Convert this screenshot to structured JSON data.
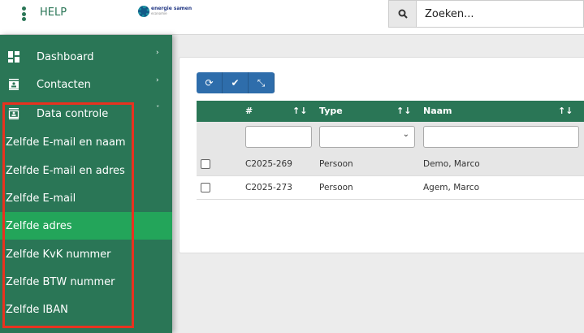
{
  "header": {
    "help_label": "HELP",
    "logo_text": "energie samen",
    "logo_subtext": "economie",
    "search_placeholder": "Zoeken..."
  },
  "sidebar": {
    "items": [
      {
        "label": "Dashboard",
        "icon": "dashboard-icon"
      },
      {
        "label": "Contacten",
        "icon": "contact-card-icon"
      },
      {
        "label": "Data controle",
        "icon": "data-check-icon"
      }
    ],
    "subitems": [
      "Zelfde E-mail en naam",
      "Zelfde E-mail en adres",
      "Zelfde E-mail",
      "Zelfde adres",
      "Zelfde KvK nummer",
      "Zelfde BTW nummer",
      "Zelfde IBAN"
    ],
    "active_subitem": "Zelfde adres"
  },
  "toolbar": {
    "buttons": [
      "refresh-icon",
      "check-icon",
      "compress-icon"
    ]
  },
  "table": {
    "columns": [
      "#",
      "Type",
      "Naam"
    ],
    "sort_icon": "↑↓",
    "rows": [
      {
        "id": "C2025-269",
        "type": "Persoon",
        "naam": "Demo, Marco"
      },
      {
        "id": "C2025-273",
        "type": "Persoon",
        "naam": "Agem, Marco"
      }
    ]
  },
  "colors": {
    "sidebar": "#2a7656",
    "active": "#23a55a",
    "button": "#2e6dab",
    "highlight": "#e8321f"
  }
}
